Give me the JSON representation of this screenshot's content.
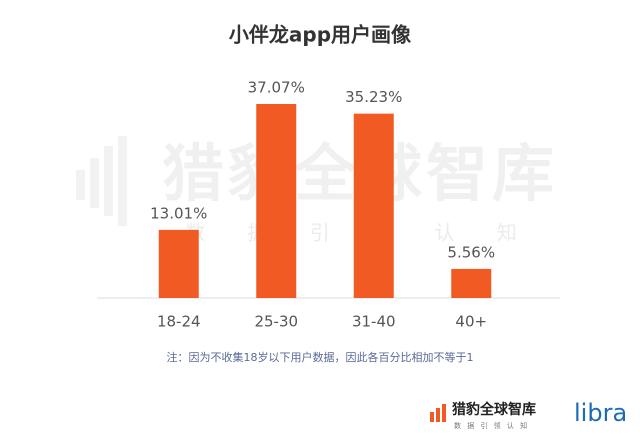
{
  "chart_data": {
    "type": "bar",
    "title": "小伴龙app用户画像",
    "categories": [
      "18-24",
      "25-30",
      "31-40",
      "40+"
    ],
    "values": [
      13.01,
      37.07,
      35.23,
      5.56
    ],
    "value_labels": [
      "13.01%",
      "37.07%",
      "35.23%",
      "5.56%"
    ],
    "color": "#f15a22",
    "note": "注：因为不收集18岁以下用户数据，因此各百分比相加不等于1"
  },
  "watermark": {
    "title": "猎豹全球智库",
    "subtitle": "数 据 引 领 认 知"
  },
  "footer": {
    "brand": "猎豹全球智库",
    "slogan": "数 据 引 领 认 知",
    "logo": "libra"
  }
}
